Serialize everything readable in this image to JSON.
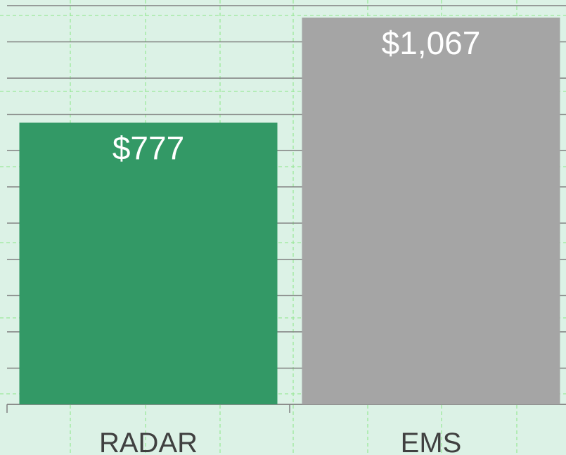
{
  "chart_data": {
    "type": "bar",
    "categories": [
      "RADAR",
      "EMS"
    ],
    "values": [
      777,
      1067
    ],
    "value_labels": [
      "$777",
      "$1,067"
    ],
    "colors": [
      "#339966",
      "#a5a5a5"
    ],
    "ylim": [
      0,
      1100
    ],
    "yticks": [
      0,
      100,
      200,
      300,
      400,
      500,
      600,
      700,
      800,
      900,
      1000,
      1100
    ],
    "grid": true
  }
}
